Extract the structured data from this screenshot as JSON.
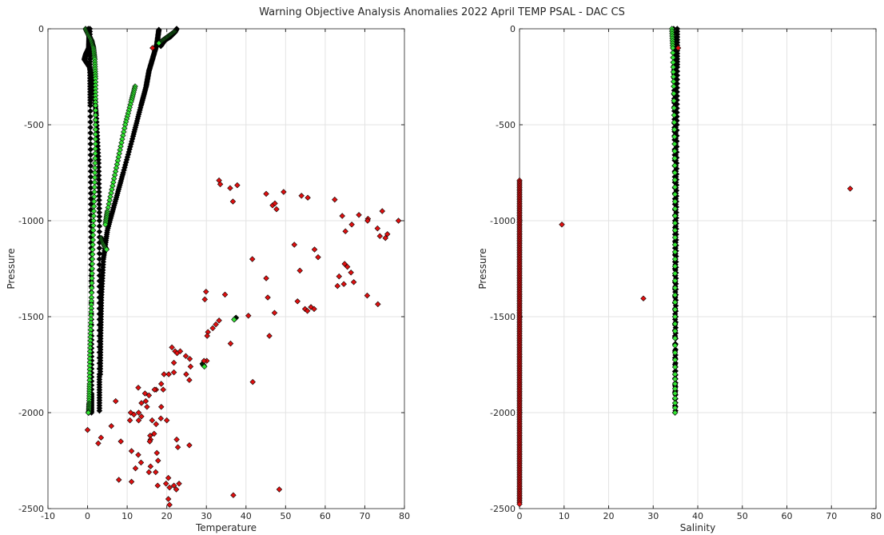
{
  "figure": {
    "title": "Warning Objective Analysis Anomalies 2022 April TEMP PSAL - DAC CS"
  },
  "colors": {
    "background": "#ffffff",
    "grid": "#e3e3e3",
    "axes": "#262626",
    "normal_marker": "#000000",
    "flag_green": "#33e633",
    "flag_red": "#e01010"
  },
  "chart_data": [
    {
      "type": "scatter",
      "xlabel": "Temperature",
      "ylabel": "Pressure",
      "xlim": [
        -10,
        80
      ],
      "ylim": [
        -2500,
        0
      ],
      "xticks": [
        -10,
        0,
        10,
        20,
        30,
        40,
        50,
        60,
        70,
        80
      ],
      "yticks": [
        -2500,
        -2000,
        -1500,
        -1000,
        -500,
        0
      ],
      "grid": true,
      "legend": "none",
      "series": [
        {
          "marker": "diamond",
          "color": "#000000",
          "profiles": [
            {
              "x": [
                0.2,
                0.4,
                0.3,
                -0.4,
                -0.8,
                0.5,
                1.5,
                2.2,
                2.8,
                3.0,
                3.0,
                3.0,
                3.0
              ],
              "y": [
                0,
                -40,
                -100,
                -130,
                -160,
                -200,
                -300,
                -450,
                -700,
                -1000,
                -1400,
                -1800,
                -1990
              ]
            },
            {
              "x": [
                0.6,
                0.6,
                0.7,
                0.8,
                0.9,
                1.0,
                1.0,
                1.0
              ],
              "y": [
                0,
                -200,
                -400,
                -800,
                -1200,
                -1600,
                -1900,
                -2000
              ]
            },
            {
              "x": [
                18.0,
                17.5,
                16.5,
                15.5,
                14.8,
                13.5,
                11.5,
                9.0,
                7.0,
                5.0,
                4.0,
                3.5,
                3.3,
                3.2
              ],
              "y": [
                -5,
                -80,
                -150,
                -220,
                -300,
                -400,
                -560,
                -750,
                -900,
                -1050,
                -1200,
                -1400,
                -1600,
                -1800
              ]
            },
            {
              "x": [
                22.5,
                22.0,
                21.0,
                19.5,
                18.5
              ],
              "y": [
                0,
                -20,
                -40,
                -60,
                -90
              ]
            }
          ]
        },
        {
          "marker": "diamond",
          "color": "#33e633",
          "profiles": [
            {
              "x": [
                -0.5,
                0.2,
                1.0,
                1.5,
                1.8,
                2.0,
                2.0,
                2.0,
                1.8,
                1.5,
                1.2,
                1.0,
                0.8,
                0.6,
                0.5,
                0.4,
                0.3,
                0.2
              ],
              "y": [
                0,
                -30,
                -60,
                -100,
                -160,
                -260,
                -400,
                -600,
                -800,
                -1000,
                -1200,
                -1400,
                -1550,
                -1700,
                -1850,
                -1950,
                -2000,
                -2000
              ]
            },
            {
              "x": [
                12.0,
                11.0,
                9.5,
                8.0,
                6.5,
                5.0,
                4.5
              ],
              "y": [
                -300,
                -380,
                -500,
                -650,
                -800,
                -950,
                -1020
              ]
            },
            {
              "x": [
                22.0,
                21.0,
                20.0,
                19.0,
                18.0
              ],
              "y": [
                -15,
                -30,
                -45,
                -60,
                -75
              ]
            },
            {
              "x": [
                3.5,
                4.0,
                4.8
              ],
              "y": [
                -1090,
                -1120,
                -1150
              ]
            },
            {
              "x": [
                37.5,
                37.0
              ],
              "y": [
                -1505,
                -1515
              ]
            },
            {
              "x": [
                29.0,
                29.5
              ],
              "y": [
                -1745,
                -1760
              ]
            }
          ]
        },
        {
          "marker": "diamond",
          "color": "#e01010",
          "x": [
            16.4,
            33.2,
            33.5,
            36.0,
            37.8,
            36.7,
            62.4,
            54.0,
            55.6,
            49.5,
            45.1,
            46.7,
            47.3,
            47.7,
            64.3,
            66.7,
            68.5,
            70.8,
            74.4,
            75.7,
            78.5,
            65.1,
            73.2,
            73.8,
            75.2,
            52.2,
            53.6,
            57.3,
            58.2,
            64.9,
            65.6,
            66.5,
            63.5,
            64.7,
            67.2,
            41.6,
            45.1,
            70.7,
            63.1,
            70.6,
            73.3,
            54.9,
            55.5,
            56.4,
            57.2,
            53.0,
            45.5,
            47.2,
            40.6,
            34.7,
            29.9,
            29.6,
            33.2,
            32.4,
            31.6,
            30.4,
            30.2,
            45.9,
            36.1,
            30.1,
            21.3,
            22.1,
            22.6,
            23.4,
            24.8,
            25.8,
            29.4,
            21.8,
            21.8,
            25.7,
            41.7,
            26.0,
            24.9,
            20.5,
            19.3,
            18.6,
            17.3,
            19.1,
            12.8,
            14.5,
            15.5,
            16.9,
            13.6,
            14.7,
            15.0,
            18.6,
            10.9,
            11.7,
            12.9,
            13.6,
            7.1,
            10.7,
            12.9,
            16.3,
            17.3,
            18.5,
            20.0,
            16.8,
            15.8,
            15.9,
            15.7,
            0.0,
            3.4,
            2.7,
            6.0,
            8.4,
            11.1,
            12.8,
            13.5,
            17.5,
            22.5,
            25.7,
            22.8,
            17.8,
            7.9,
            12.1,
            11.1,
            15.9,
            17.2,
            20.4,
            20.7,
            21.8,
            15.5,
            17.7,
            19.8,
            22.4,
            23.1,
            20.4,
            20.7,
            36.8,
            48.4
          ],
          "y": [
            -100,
            -790,
            -810,
            -830,
            -815,
            -900,
            -890,
            -870,
            -880,
            -850,
            -860,
            -920,
            -910,
            -940,
            -975,
            -1020,
            -970,
            -990,
            -950,
            -1070,
            -1000,
            -1055,
            -1040,
            -1080,
            -1090,
            -1125,
            -1260,
            -1150,
            -1190,
            -1225,
            -1240,
            -1270,
            -1290,
            -1330,
            -1320,
            -1200,
            -1300,
            -1000,
            -1340,
            -1390,
            -1435,
            -1460,
            -1470,
            -1450,
            -1460,
            -1420,
            -1400,
            -1480,
            -1495,
            -1385,
            -1370,
            -1410,
            -1520,
            -1540,
            -1560,
            -1580,
            -1600,
            -1600,
            -1640,
            -1730,
            -1660,
            -1680,
            -1690,
            -1680,
            -1705,
            -1720,
            -1730,
            -1740,
            -1790,
            -1830,
            -1840,
            -1760,
            -1800,
            -1800,
            -1800,
            -1850,
            -1880,
            -1880,
            -1870,
            -1900,
            -1910,
            -1880,
            -1950,
            -1940,
            -1970,
            -1970,
            -2000,
            -2010,
            -2000,
            -2020,
            -1940,
            -2040,
            -2040,
            -2040,
            -2060,
            -2030,
            -2040,
            -2110,
            -2120,
            -2140,
            -2150,
            -2090,
            -2130,
            -2160,
            -2070,
            -2150,
            -2200,
            -2220,
            -2260,
            -2210,
            -2140,
            -2170,
            -2180,
            -2250,
            -2350,
            -2290,
            -2360,
            -2280,
            -2310,
            -2340,
            -2390,
            -2380,
            -2310,
            -2380,
            -2370,
            -2400,
            -2370,
            -2450,
            -2480,
            -2430,
            -2400
          ]
        }
      ]
    },
    {
      "type": "scatter",
      "xlabel": "Salinity",
      "ylabel": "Pressure",
      "xlim": [
        0,
        80
      ],
      "ylim": [
        -2500,
        0
      ],
      "xticks": [
        0,
        10,
        20,
        30,
        40,
        50,
        60,
        70,
        80
      ],
      "yticks": [
        -2500,
        -2000,
        -1500,
        -1000,
        -500,
        0
      ],
      "grid": true,
      "legend": "none",
      "series": [
        {
          "marker": "diamond",
          "color": "#000000",
          "profiles": [
            {
              "x": [
                35.4,
                35.4,
                35.3,
                35.2,
                35.1,
                35.0,
                35.0
              ],
              "y": [
                0,
                -200,
                -500,
                -900,
                -1300,
                -1700,
                -1990
              ]
            },
            {
              "x": [
                34.6,
                34.7,
                34.8,
                34.9,
                34.9,
                34.9
              ],
              "y": [
                0,
                -300,
                -600,
                -1000,
                -1500,
                -2000
              ]
            },
            {
              "x": [
                34.9,
                35.0,
                35.1,
                35.0,
                34.9
              ],
              "y": [
                -50,
                -400,
                -800,
                -1200,
                -1600
              ]
            }
          ]
        },
        {
          "marker": "diamond",
          "color": "#33e633",
          "profiles": [
            {
              "x": [
                34.2,
                34.4,
                34.6,
                34.8,
                34.9,
                34.9,
                34.9,
                34.9,
                34.9
              ],
              "y": [
                0,
                -100,
                -300,
                -600,
                -900,
                -1200,
                -1500,
                -1800,
                -2000
              ]
            }
          ]
        },
        {
          "marker": "diamond",
          "color": "#e01010",
          "x": [
            35.6,
            74.2,
            9.5,
            27.8
          ],
          "y": [
            -100,
            -833,
            -1020,
            -1405
          ]
        },
        {
          "marker": "diamond",
          "color": "#e01010",
          "column": true,
          "x_constant": 0.0,
          "y_range": [
            -790,
            -2480
          ]
        }
      ]
    }
  ]
}
